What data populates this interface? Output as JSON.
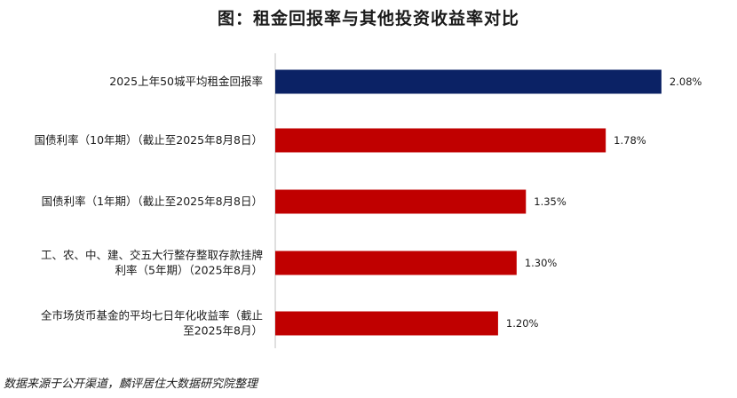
{
  "chart_data": {
    "type": "bar",
    "orientation": "horizontal",
    "title": "图：租金回报率与其他投资收益率对比",
    "categories": [
      [
        "2025上年50城平均租金回报率"
      ],
      [
        "国债利率（10年期）（截止至2025年8月8日）"
      ],
      [
        "国债利率（1年期）（截止至2025年8月8日）"
      ],
      [
        "工、农、中、建、交五大行整存整取存款挂牌",
        "利率（5年期）（2025年8月）"
      ],
      [
        "全市场货币基金的平均七日年化收益率（截止",
        "至2025年8月）"
      ]
    ],
    "values": [
      2.08,
      1.78,
      1.35,
      1.3,
      1.2
    ],
    "value_labels": [
      "2.08%",
      "1.78%",
      "1.35%",
      "1.30%",
      "1.20%"
    ],
    "bar_colors": [
      "#0b2265",
      "#c00000",
      "#c00000",
      "#c00000",
      "#c00000"
    ],
    "axis_color": "#bfbfbf",
    "xlim": [
      0,
      2.2
    ],
    "grid": false,
    "legend": false
  },
  "source_note": "数据来源于公开渠道，麟评居住大数据研究院整理"
}
